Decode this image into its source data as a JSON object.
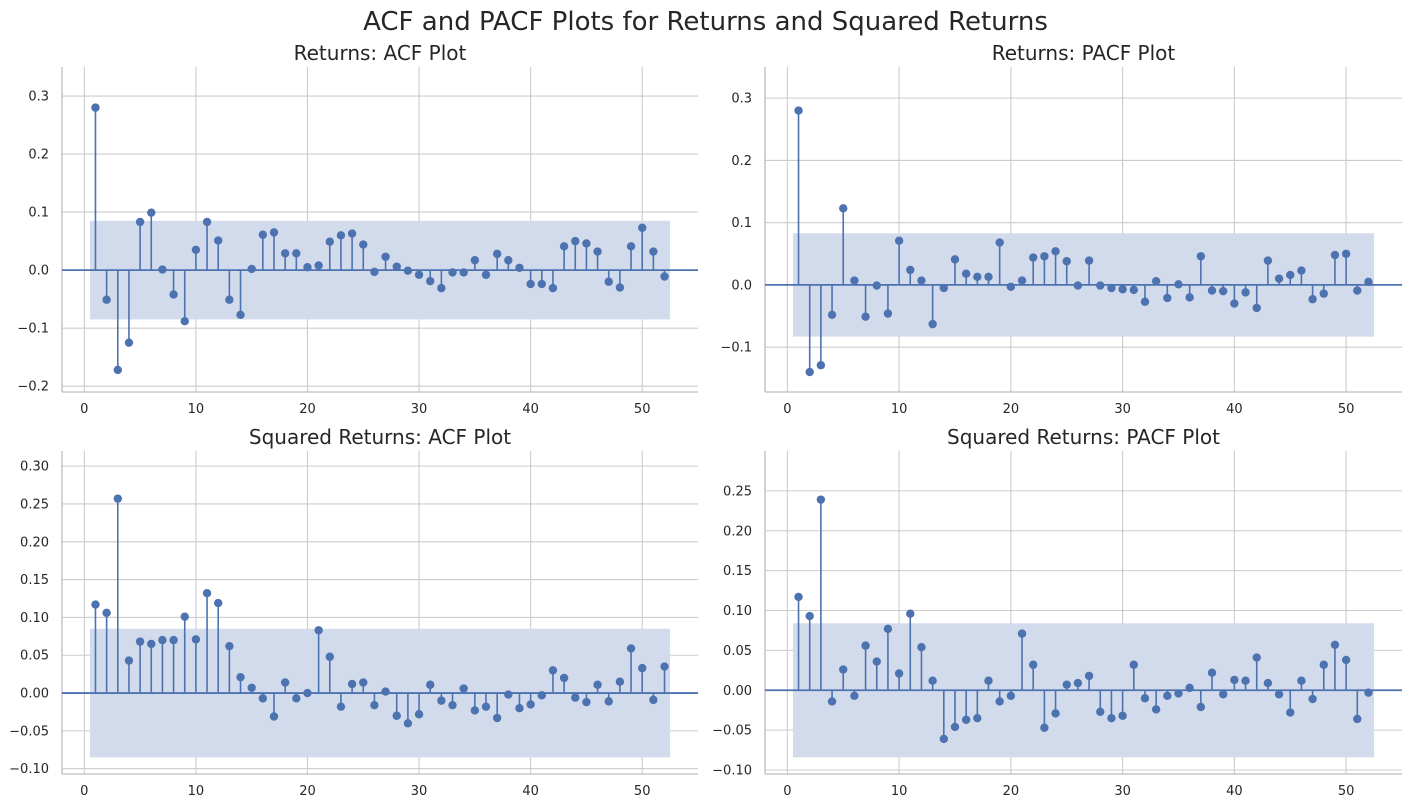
{
  "figure": {
    "title": "ACF and PACF Plots for Returns and Squared Returns"
  },
  "colors": {
    "series": "#4c72b0",
    "confidence_band": "#d2dbec",
    "grid": "#cccccc",
    "axis": "#bdbdbd",
    "text": "#262626"
  },
  "chart_data": [
    {
      "type": "stem",
      "title": "Returns: ACF Plot",
      "xlabel": "",
      "ylabel": "",
      "xlim": [
        -2,
        55
      ],
      "ylim": [
        -0.21,
        0.35
      ],
      "xticks": [
        0,
        10,
        20,
        30,
        40,
        50
      ],
      "xtick_labels": [
        "0",
        "10",
        "20",
        "30",
        "40",
        "50"
      ],
      "yticks": [
        -0.2,
        -0.1,
        0.0,
        0.1,
        0.2,
        0.3
      ],
      "ytick_labels": [
        "−0.2",
        "−0.1",
        "0.0",
        "0.1",
        "0.2",
        "0.3"
      ],
      "confidence_band": {
        "lower": -0.085,
        "upper": 0.085,
        "x_start": 0.5,
        "x_end": 52.5
      },
      "lags": [
        1,
        2,
        3,
        4,
        5,
        6,
        7,
        8,
        9,
        10,
        11,
        12,
        13,
        14,
        15,
        16,
        17,
        18,
        19,
        20,
        21,
        22,
        23,
        24,
        25,
        26,
        27,
        28,
        29,
        30,
        31,
        32,
        33,
        34,
        35,
        36,
        37,
        38,
        39,
        40,
        41,
        42,
        43,
        44,
        45,
        46,
        47,
        48,
        49,
        50,
        51,
        52
      ],
      "values": [
        0.28,
        -0.051,
        -0.172,
        -0.125,
        0.083,
        0.099,
        0.001,
        -0.042,
        -0.088,
        0.035,
        0.083,
        0.051,
        -0.051,
        -0.077,
        0.002,
        0.061,
        0.065,
        0.029,
        0.029,
        0.005,
        0.008,
        0.049,
        0.06,
        0.063,
        0.044,
        -0.003,
        0.023,
        0.006,
        -0.001,
        -0.008,
        -0.019,
        -0.031,
        -0.004,
        -0.004,
        0.017,
        -0.008,
        0.028,
        0.017,
        0.004,
        -0.024,
        -0.024,
        -0.031,
        0.041,
        0.05,
        0.046,
        0.032,
        -0.02,
        -0.03,
        0.041,
        0.073,
        0.032,
        -0.011
      ]
    },
    {
      "type": "stem",
      "title": "Returns: PACF Plot",
      "xlabel": "",
      "ylabel": "",
      "xlim": [
        -2,
        55
      ],
      "ylim": [
        -0.172,
        0.35
      ],
      "xticks": [
        0,
        10,
        20,
        30,
        40,
        50
      ],
      "xtick_labels": [
        "0",
        "10",
        "20",
        "30",
        "40",
        "50"
      ],
      "yticks": [
        -0.1,
        0.0,
        0.1,
        0.2,
        0.3
      ],
      "ytick_labels": [
        "−0.1",
        "0.0",
        "0.1",
        "0.2",
        "0.3"
      ],
      "confidence_band": {
        "lower": -0.083,
        "upper": 0.083,
        "x_start": 0.5,
        "x_end": 52.5
      },
      "lags": [
        1,
        2,
        3,
        4,
        5,
        6,
        7,
        8,
        9,
        10,
        11,
        12,
        13,
        14,
        15,
        16,
        17,
        18,
        19,
        20,
        21,
        22,
        23,
        24,
        25,
        26,
        27,
        28,
        29,
        30,
        31,
        32,
        33,
        34,
        35,
        36,
        37,
        38,
        39,
        40,
        41,
        42,
        43,
        44,
        45,
        46,
        47,
        48,
        49,
        50,
        51,
        52
      ],
      "values": [
        0.28,
        -0.14,
        -0.129,
        -0.048,
        0.123,
        0.007,
        -0.051,
        -0.001,
        -0.046,
        0.071,
        0.024,
        0.007,
        -0.063,
        -0.005,
        0.041,
        0.018,
        0.013,
        0.013,
        0.068,
        -0.003,
        0.007,
        0.044,
        0.046,
        0.054,
        0.038,
        -0.001,
        0.039,
        -0.001,
        -0.005,
        -0.007,
        -0.008,
        -0.027,
        0.006,
        -0.021,
        0.001,
        -0.02,
        0.046,
        -0.009,
        -0.01,
        -0.03,
        -0.012,
        -0.037,
        0.039,
        0.01,
        0.016,
        0.023,
        -0.023,
        -0.014,
        0.048,
        0.05,
        -0.009,
        0.005
      ]
    },
    {
      "type": "stem",
      "title": "Squared Returns: ACF Plot",
      "xlabel": "",
      "ylabel": "",
      "xlim": [
        -2,
        55
      ],
      "ylim": [
        -0.107,
        0.32
      ],
      "xticks": [
        0,
        10,
        20,
        30,
        40,
        50
      ],
      "xtick_labels": [
        "0",
        "10",
        "20",
        "30",
        "40",
        "50"
      ],
      "yticks": [
        -0.1,
        -0.05,
        0.0,
        0.05,
        0.1,
        0.15,
        0.2,
        0.25,
        0.3
      ],
      "ytick_labels": [
        "−0.10",
        "−0.05",
        "0.00",
        "0.05",
        "0.10",
        "0.15",
        "0.20",
        "0.25",
        "0.30"
      ],
      "confidence_band": {
        "lower": -0.085,
        "upper": 0.085,
        "x_start": 0.5,
        "x_end": 52.5
      },
      "lags": [
        1,
        2,
        3,
        4,
        5,
        6,
        7,
        8,
        9,
        10,
        11,
        12,
        13,
        14,
        15,
        16,
        17,
        18,
        19,
        20,
        21,
        22,
        23,
        24,
        25,
        26,
        27,
        28,
        29,
        30,
        31,
        32,
        33,
        34,
        35,
        36,
        37,
        38,
        39,
        40,
        41,
        42,
        43,
        44,
        45,
        46,
        47,
        48,
        49,
        50,
        51,
        52
      ],
      "values": [
        0.117,
        0.106,
        0.257,
        0.043,
        0.068,
        0.065,
        0.07,
        0.07,
        0.101,
        0.071,
        0.132,
        0.119,
        0.062,
        0.021,
        0.007,
        -0.007,
        -0.031,
        0.014,
        -0.007,
        0.0,
        0.083,
        0.048,
        -0.018,
        0.012,
        0.014,
        -0.016,
        0.002,
        -0.03,
        -0.04,
        -0.028,
        0.011,
        -0.01,
        -0.016,
        0.006,
        -0.023,
        -0.018,
        -0.033,
        -0.002,
        -0.02,
        -0.015,
        -0.003,
        0.03,
        0.02,
        -0.006,
        -0.012,
        0.011,
        -0.011,
        0.015,
        0.059,
        0.033,
        -0.009,
        0.035
      ]
    },
    {
      "type": "stem",
      "title": "Squared Returns: PACF Plot",
      "xlabel": "",
      "ylabel": "",
      "xlim": [
        -2,
        55
      ],
      "ylim": [
        -0.105,
        0.3
      ],
      "xticks": [
        0,
        10,
        20,
        30,
        40,
        50
      ],
      "xtick_labels": [
        "0",
        "10",
        "20",
        "30",
        "40",
        "50"
      ],
      "yticks": [
        -0.1,
        -0.05,
        0.0,
        0.05,
        0.1,
        0.15,
        0.2,
        0.25
      ],
      "ytick_labels": [
        "−0.10",
        "−0.05",
        "0.00",
        "0.05",
        "0.10",
        "0.15",
        "0.20",
        "0.25"
      ],
      "confidence_band": {
        "lower": -0.084,
        "upper": 0.084,
        "x_start": 0.5,
        "x_end": 52.5
      },
      "lags": [
        1,
        2,
        3,
        4,
        5,
        6,
        7,
        8,
        9,
        10,
        11,
        12,
        13,
        14,
        15,
        16,
        17,
        18,
        19,
        20,
        21,
        22,
        23,
        24,
        25,
        26,
        27,
        28,
        29,
        30,
        31,
        32,
        33,
        34,
        35,
        36,
        37,
        38,
        39,
        40,
        41,
        42,
        43,
        44,
        45,
        46,
        47,
        48,
        49,
        50,
        51,
        52
      ],
      "values": [
        0.117,
        0.093,
        0.239,
        -0.014,
        0.026,
        -0.007,
        0.056,
        0.036,
        0.077,
        0.021,
        0.096,
        0.054,
        0.012,
        -0.061,
        -0.046,
        -0.037,
        -0.035,
        0.012,
        -0.014,
        -0.007,
        0.071,
        0.032,
        -0.047,
        -0.029,
        0.007,
        0.009,
        0.018,
        -0.027,
        -0.035,
        -0.032,
        0.032,
        -0.01,
        -0.024,
        -0.007,
        -0.004,
        0.003,
        -0.021,
        0.022,
        -0.005,
        0.013,
        0.012,
        0.041,
        0.009,
        -0.005,
        -0.028,
        0.012,
        -0.011,
        0.032,
        0.057,
        0.038,
        -0.036,
        -0.003
      ]
    }
  ]
}
